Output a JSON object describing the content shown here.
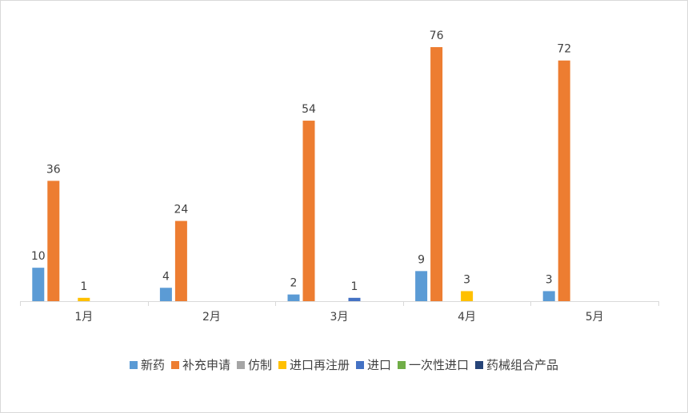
{
  "chart_data": {
    "type": "bar",
    "categories": [
      "1月",
      "2月",
      "3月",
      "4月",
      "5月"
    ],
    "series": [
      {
        "name": "新药",
        "color": "#5B9BD5",
        "values": [
          10,
          4,
          2,
          9,
          3
        ]
      },
      {
        "name": "补充申请",
        "color": "#ED7D31",
        "values": [
          36,
          24,
          54,
          76,
          72
        ]
      },
      {
        "name": "仿制",
        "color": "#A5A5A5",
        "values": [
          null,
          null,
          null,
          null,
          null
        ]
      },
      {
        "name": "进口再注册",
        "color": "#FFC000",
        "values": [
          1,
          null,
          null,
          3,
          null
        ]
      },
      {
        "name": "进口",
        "color": "#4472C4",
        "values": [
          null,
          null,
          1,
          null,
          null
        ]
      },
      {
        "name": "一次性进口",
        "color": "#70AD47",
        "values": [
          null,
          null,
          null,
          null,
          null
        ]
      },
      {
        "name": "药械组合产品",
        "color": "#264478",
        "values": [
          null,
          null,
          null,
          null,
          null
        ]
      }
    ],
    "ylim": [
      0,
      80
    ],
    "grid": false,
    "legend_position": "bottom",
    "data_labels": true
  }
}
